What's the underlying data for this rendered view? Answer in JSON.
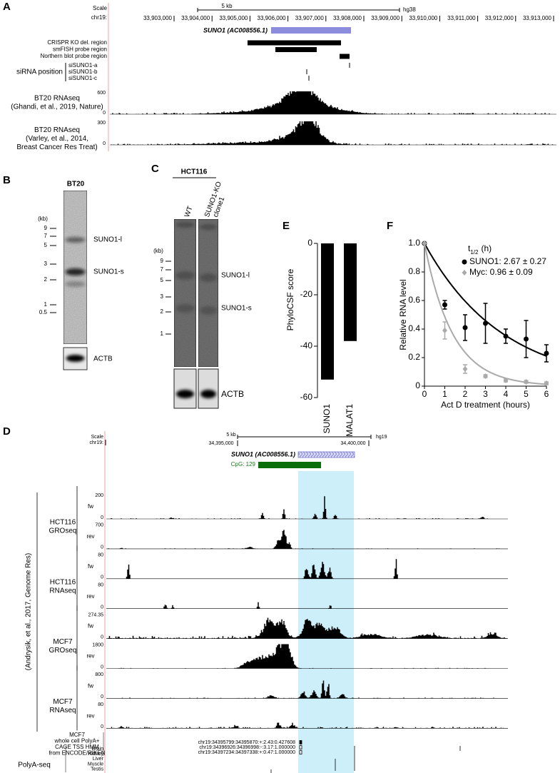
{
  "panel_a": {
    "label": "A",
    "scale": "Scale",
    "chrom": "chr19:",
    "scale_bar": "5 kb",
    "assembly": "hg38",
    "coords": [
      "33,903,000",
      "33,904,000",
      "33,905,000",
      "33,906,000",
      "33,907,000",
      "33,908,000",
      "33,909,000",
      "33,910,000",
      "33,911,000",
      "33,912,000",
      "33,913,000"
    ],
    "gene": "SUNO1 (AC008556.1)",
    "regions": [
      "CRISPR KO del. region",
      "smFISH probe region",
      "Northern blot probe region"
    ],
    "sirna_title": "siRNA position",
    "sirnas": [
      "siSUNO1-a",
      "siSUNO1-b",
      "siSUNO1-c"
    ],
    "tracks": [
      {
        "lines": [
          "BT20 RNAseq",
          "(Ghandi, et al., 2019, Nature)"
        ],
        "max": "600",
        "min": "0"
      },
      {
        "lines": [
          "BT20 RNAseq",
          "(Varley, et al., 2014,",
          "Breast Cancer Res Treat)"
        ],
        "max": "300",
        "min": "0"
      }
    ]
  },
  "panel_b": {
    "label": "B",
    "sample": "BT20",
    "unit": "(kb)",
    "ladder": [
      "9",
      "7",
      "5",
      "3",
      "2",
      "1",
      "0.5"
    ],
    "bands": [
      "SUNO1-l",
      "SUNO1-s"
    ],
    "control": "ACTB"
  },
  "panel_c": {
    "label": "C",
    "cell_line": "HCT116",
    "lanes": [
      [
        "WT"
      ],
      [
        "SUNO1-KO",
        "clone1"
      ]
    ],
    "unit": "(kb)",
    "ladder": [
      "9",
      "7",
      "5",
      "3",
      "2",
      "1"
    ],
    "bands": [
      "SUNO1-l",
      "SUNO1-s"
    ],
    "control": "ACTB"
  },
  "panel_e": {
    "label": "E",
    "type": "bar",
    "categories": [
      "SUNO1",
      "MALAT1"
    ],
    "values": [
      -53,
      -38
    ],
    "color": "#000000",
    "ylabel": "PhyloCSF score",
    "ylim": [
      -60,
      0
    ],
    "yticks": [
      -60,
      -40,
      -20,
      0
    ]
  },
  "panel_f": {
    "label": "F",
    "type": "scatter",
    "x": [
      0,
      1,
      2,
      3,
      4,
      5,
      6
    ],
    "series": [
      {
        "name": "SUNO1: 2.67 ± 0.27",
        "color": "#000000",
        "half_life": 2.67,
        "values": [
          1.0,
          0.57,
          0.41,
          0.44,
          0.35,
          0.33,
          0.23
        ],
        "errors": [
          0,
          0.03,
          0.09,
          0.14,
          0.05,
          0.13,
          0.06
        ]
      },
      {
        "name": "Myc: 0.96 ± 0.09",
        "color": "#aaaaaa",
        "half_life": 0.96,
        "values": [
          1.0,
          0.39,
          0.12,
          0.07,
          0.04,
          0.03,
          0.02
        ],
        "errors": [
          0,
          0.06,
          0.03,
          0.01,
          0.01,
          0.01,
          0.01
        ]
      }
    ],
    "legend_title": [
      "t",
      "1/2",
      "(h)"
    ],
    "xlabel": "Act D treatment (hours)",
    "ylabel": "Relative RNA level",
    "xlim": [
      0,
      6
    ],
    "xticks": [
      0,
      1,
      2,
      3,
      4,
      5,
      6
    ],
    "ylim": [
      0,
      1
    ],
    "yticks": [
      0,
      0.2,
      0.4,
      0.6,
      0.8,
      {
        "value": 1,
        "label": "1.0"
      }
    ]
  },
  "panel_d": {
    "label": "D",
    "scale": "Scale",
    "chrom": "chr19:",
    "scale_bar": "5 kb",
    "coords": [
      "34,395,000",
      "34,400,000"
    ],
    "assembly": "hg19",
    "gene": "SUNO1 (AC008556.1)",
    "cpg": "CpG: 129",
    "source": "(Andrysik, et al., 2017, Genome Res)",
    "groups": [
      {
        "lines": [
          "HCT116",
          "GROseq"
        ],
        "tracks": [
          {
            "strand": "fw",
            "max": "200",
            "min": "0"
          },
          {
            "strand": "rev",
            "max": "700",
            "min": "0"
          }
        ]
      },
      {
        "lines": [
          "HCT116",
          "RNAseq"
        ],
        "tracks": [
          {
            "strand": "fw",
            "max": "80",
            "min": "0"
          },
          {
            "strand": "rev",
            "max": "80",
            "min": "0"
          }
        ]
      },
      {
        "lines": [
          "MCF7",
          "GROseq"
        ],
        "tracks": [
          {
            "strand": "fw",
            "max": "274.35",
            "min": "0"
          },
          {
            "strand": "rev",
            "max": "1800",
            "min": "0"
          }
        ]
      },
      {
        "lines": [
          "MCF7",
          "RNAseq"
        ],
        "tracks": [
          {
            "strand": "fw",
            "max": "800",
            "min": "0"
          },
          {
            "strand": "rev",
            "max": "80",
            "min": "0"
          }
        ]
      }
    ],
    "cage_title": [
      "MCF7",
      "whole cell PolyA+",
      "CAGE TSS HMM",
      "from ENCODE/RIKEN"
    ],
    "cage_entries": [
      "chr19:34395799:34395870:+:2.43:0.427608",
      "chr19:34396926:34396998:-:3.17:1.000000",
      "chr19:34397234:34397338:+:0.47:1.000000"
    ],
    "polya_title": "PolyA-seq",
    "tissues": [
      "Brain",
      "Kidney",
      "Liver",
      "Muscle",
      "Testis"
    ]
  }
}
